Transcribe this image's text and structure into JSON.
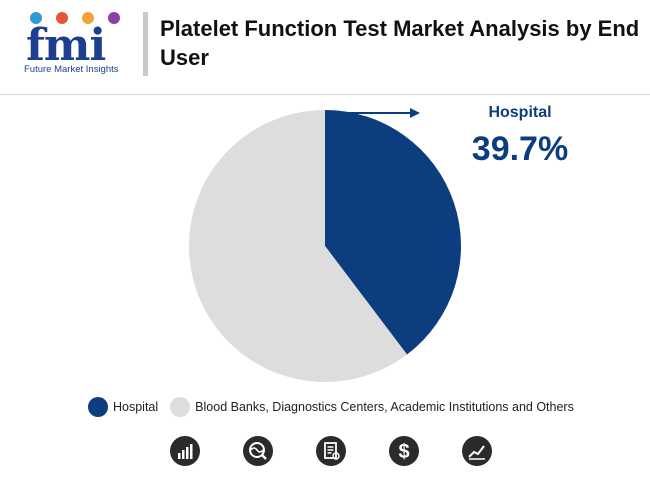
{
  "header": {
    "logo_letters": "fmi",
    "logo_subtitle": "Future Market Insights",
    "title": "Platelet Function Test Market Analysis by End User"
  },
  "colors": {
    "primary": "#0b3d7f",
    "secondary": "#dddddd",
    "logo_dots": [
      "#2f9ad8",
      "#e9533b",
      "#f2a33a",
      "#8e3ea3"
    ]
  },
  "callout": {
    "label": "Hospital",
    "value": "39.7%"
  },
  "chart_data": {
    "type": "pie",
    "labels": [
      "Hospital",
      "Blood Banks, Diagnostics Centers, Academic Institutions and Others"
    ],
    "values": [
      39.7,
      60.3
    ],
    "colors": [
      "#0b3d7f",
      "#dddddd"
    ],
    "start_angle": "12 o'clock",
    "direction": "clockwise",
    "legend_position": "bottom"
  },
  "legend": [
    {
      "label": "Hospital",
      "color": "#0b3d7f"
    },
    {
      "label": "Blood Banks, Diagnostics Centers, Academic Institutions and Others",
      "color": "#dddddd"
    }
  ],
  "footer_icons": [
    "bar-chart-icon",
    "globe-search-icon",
    "document-icon",
    "dollar-icon",
    "line-chart-icon"
  ]
}
